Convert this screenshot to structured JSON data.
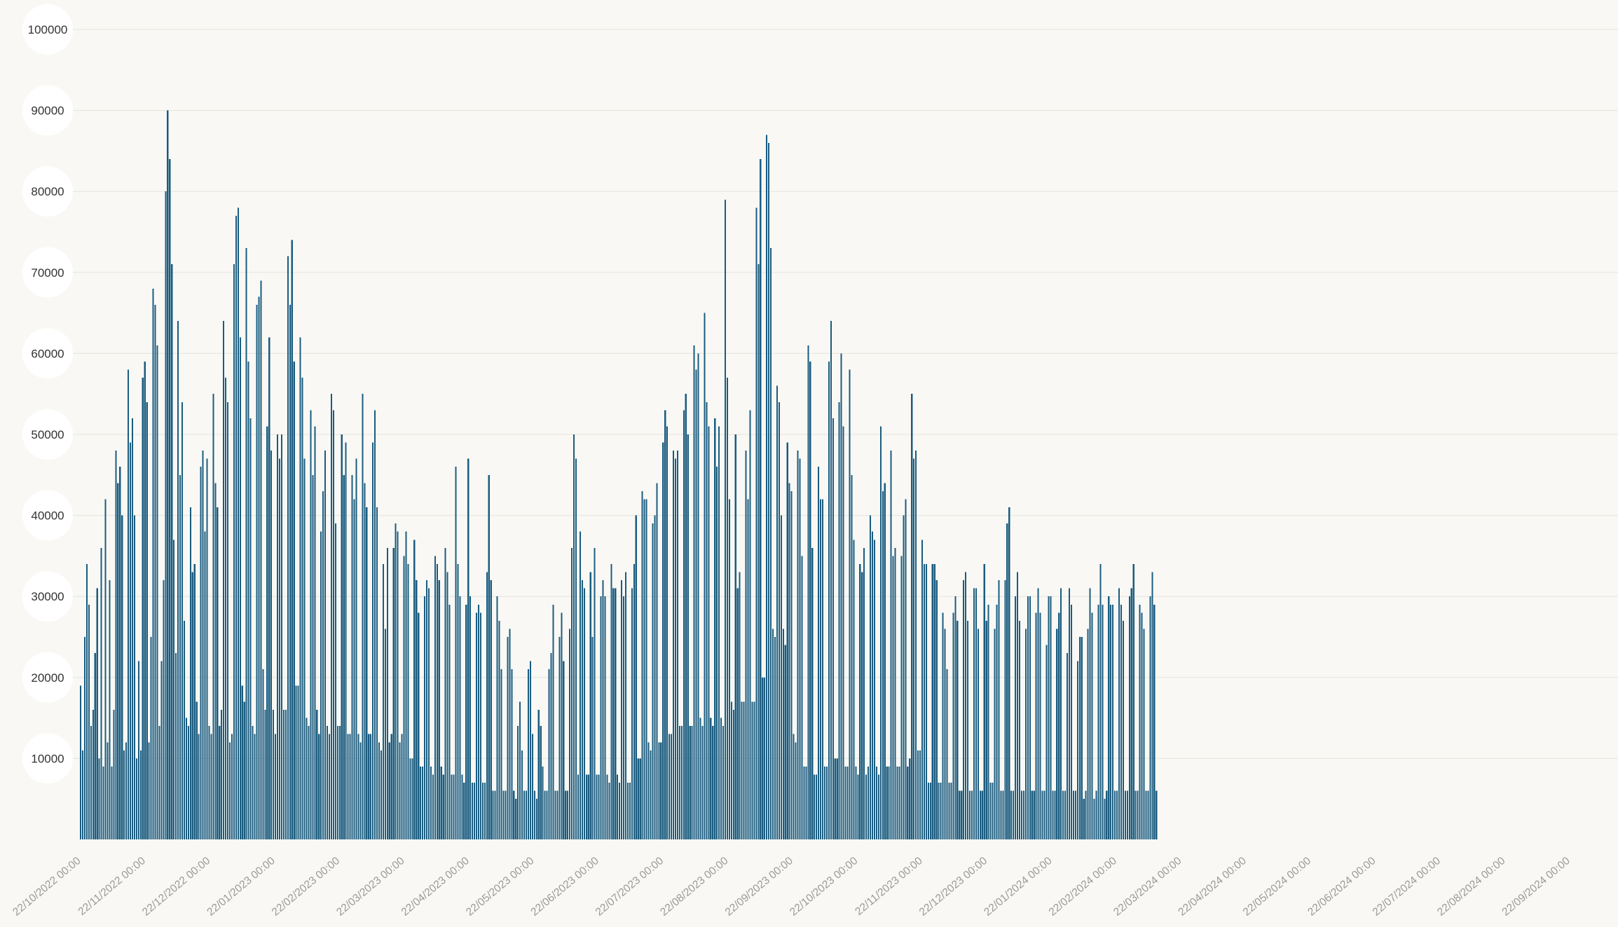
{
  "chart_data": {
    "type": "bar",
    "title": "",
    "xlabel": "",
    "ylabel": "",
    "ylim": [
      0,
      100000
    ],
    "y_ticks": [
      "10000",
      "20000",
      "30000",
      "40000",
      "50000",
      "60000",
      "70000",
      "80000",
      "90000",
      "100000"
    ],
    "x_start": "22/10/2022",
    "x_ticks": [
      "22/10/2022 00:00",
      "22/11/2022 00:00",
      "22/12/2022 00:00",
      "22/01/2023 00:00",
      "22/02/2023 00:00",
      "22/03/2023 00:00",
      "22/04/2023 00:00",
      "22/05/2023 00:00",
      "22/06/2023 00:00",
      "22/07/2023 00:00",
      "22/08/2023 00:00",
      "22/09/2023 00:00",
      "22/10/2023 00:00",
      "22/11/2023 00:00",
      "22/12/2023 00:00",
      "22/01/2024 00:00",
      "22/02/2024 00:00",
      "22/03/2024 00:00",
      "22/04/2024 00:00",
      "22/05/2024 00:00",
      "22/06/2024 00:00",
      "22/07/2024 00:00",
      "22/08/2024 00:00",
      "22/09/2024 00:00"
    ],
    "series": [
      {
        "color": "#1a5c80",
        "values": [
          19000,
          11000,
          25000,
          34000,
          29000,
          14000,
          16000,
          23000,
          31000,
          10000,
          36000,
          9000,
          42000,
          12000,
          32000,
          9000,
          16000,
          48000,
          44000,
          46000,
          40000,
          11000,
          12000,
          58000,
          49000,
          52000,
          40000,
          10000,
          22000,
          11000,
          57000,
          59000,
          54000,
          12000,
          25000,
          68000,
          66000,
          61000,
          14000,
          22000,
          32000,
          80000,
          90000,
          84000,
          71000,
          37000,
          23000,
          64000,
          45000,
          54000,
          27000,
          15000,
          14000,
          41000,
          33000,
          34000,
          17000,
          13000,
          46000,
          48000,
          38000,
          47000,
          14000,
          13000,
          55000,
          44000,
          41000,
          14000,
          16000,
          64000,
          57000,
          54000,
          12000,
          13000,
          71000,
          77000,
          78000,
          62000,
          19000,
          17000,
          73000,
          59000,
          52000,
          14000,
          13000,
          66000,
          67000,
          69000,
          21000,
          16000,
          51000,
          62000,
          48000,
          16000,
          13000,
          50000,
          47000,
          50000,
          16000,
          16000,
          72000,
          66000,
          74000,
          59000,
          19000,
          19000,
          62000,
          57000,
          47000,
          15000,
          14000,
          53000,
          45000,
          51000,
          16000,
          13000,
          38000,
          43000,
          48000,
          14000,
          13000,
          55000,
          53000,
          39000,
          14000,
          14000,
          50000,
          45000,
          49000,
          13000,
          13000,
          45000,
          42000,
          47000,
          13000,
          12000,
          55000,
          44000,
          41000,
          13000,
          13000,
          49000,
          53000,
          41000,
          12000,
          11000,
          34000,
          26000,
          36000,
          12000,
          13000,
          36000,
          39000,
          38000,
          12000,
          13000,
          35000,
          38000,
          34000,
          10000,
          10000,
          37000,
          32000,
          28000,
          9000,
          9000,
          30000,
          32000,
          31000,
          9000,
          8000,
          35000,
          34000,
          32000,
          9000,
          8000,
          36000,
          33000,
          29000,
          8000,
          8000,
          46000,
          34000,
          30000,
          8000,
          7000,
          29000,
          47000,
          30000,
          7000,
          7000,
          28000,
          29000,
          28000,
          7000,
          7000,
          33000,
          45000,
          32000,
          6000,
          6000,
          30000,
          27000,
          21000,
          6000,
          6000,
          25000,
          26000,
          21000,
          6000,
          5000,
          14000,
          17000,
          11000,
          6000,
          6000,
          21000,
          22000,
          13000,
          6000,
          5000,
          16000,
          14000,
          9000,
          6000,
          6000,
          21000,
          23000,
          29000,
          6000,
          6000,
          25000,
          28000,
          22000,
          6000,
          6000,
          26000,
          36000,
          50000,
          47000,
          8000,
          38000,
          32000,
          31000,
          8000,
          8000,
          33000,
          25000,
          36000,
          8000,
          8000,
          30000,
          32000,
          30000,
          8000,
          7000,
          34000,
          31000,
          31000,
          8000,
          7000,
          32000,
          30000,
          33000,
          7000,
          7000,
          31000,
          34000,
          40000,
          10000,
          10000,
          43000,
          42000,
          42000,
          12000,
          11000,
          39000,
          40000,
          44000,
          12000,
          12000,
          49000,
          53000,
          51000,
          13000,
          13000,
          48000,
          47000,
          48000,
          14000,
          14000,
          53000,
          55000,
          50000,
          14000,
          14000,
          61000,
          58000,
          60000,
          15000,
          14000,
          65000,
          54000,
          51000,
          15000,
          14000,
          52000,
          46000,
          51000,
          15000,
          14000,
          79000,
          57000,
          42000,
          17000,
          16000,
          50000,
          31000,
          33000,
          17000,
          17000,
          48000,
          42000,
          53000,
          17000,
          17000,
          78000,
          71000,
          84000,
          20000,
          20000,
          87000,
          86000,
          73000,
          26000,
          25000,
          56000,
          54000,
          40000,
          26000,
          24000,
          49000,
          44000,
          43000,
          13000,
          12000,
          48000,
          47000,
          35000,
          9000,
          9000,
          61000,
          59000,
          36000,
          8000,
          8000,
          46000,
          42000,
          42000,
          9000,
          9000,
          59000,
          64000,
          52000,
          10000,
          10000,
          54000,
          60000,
          51000,
          9000,
          9000,
          58000,
          45000,
          37000,
          9000,
          8000,
          34000,
          33000,
          36000,
          8000,
          9000,
          40000,
          38000,
          37000,
          9000,
          8000,
          51000,
          43000,
          44000,
          9000,
          9000,
          48000,
          35000,
          36000,
          9000,
          9000,
          35000,
          40000,
          42000,
          9000,
          10000,
          55000,
          47000,
          48000,
          11000,
          11000,
          37000,
          34000,
          34000,
          7000,
          7000,
          34000,
          34000,
          32000,
          7000,
          7000,
          28000,
          26000,
          21000,
          7000,
          7000,
          28000,
          30000,
          27000,
          6000,
          6000,
          32000,
          33000,
          27000,
          6000,
          6000,
          31000,
          31000,
          26000,
          6000,
          6000,
          34000,
          27000,
          29000,
          7000,
          7000,
          26000,
          29000,
          32000,
          6000,
          6000,
          32000,
          39000,
          41000,
          6000,
          6000,
          30000,
          33000,
          27000,
          6000,
          6000,
          26000,
          30000,
          30000,
          6000,
          6000,
          28000,
          31000,
          28000,
          6000,
          6000,
          24000,
          30000,
          30000,
          6000,
          6000,
          26000,
          28000,
          31000,
          6000,
          6000,
          23000,
          31000,
          29000,
          6000,
          6000,
          22000,
          25000,
          25000,
          5000,
          6000,
          26000,
          31000,
          28000,
          5000,
          6000,
          29000,
          34000,
          29000,
          5000,
          6000,
          30000,
          29000,
          29000,
          6000,
          6000,
          31000,
          29000,
          27000,
          6000,
          6000,
          30000,
          31000,
          34000,
          6000,
          6000,
          29000,
          28000,
          26000,
          6000,
          6000,
          30000,
          33000,
          29000,
          6000
        ]
      }
    ],
    "grid": true,
    "legend": "none"
  }
}
